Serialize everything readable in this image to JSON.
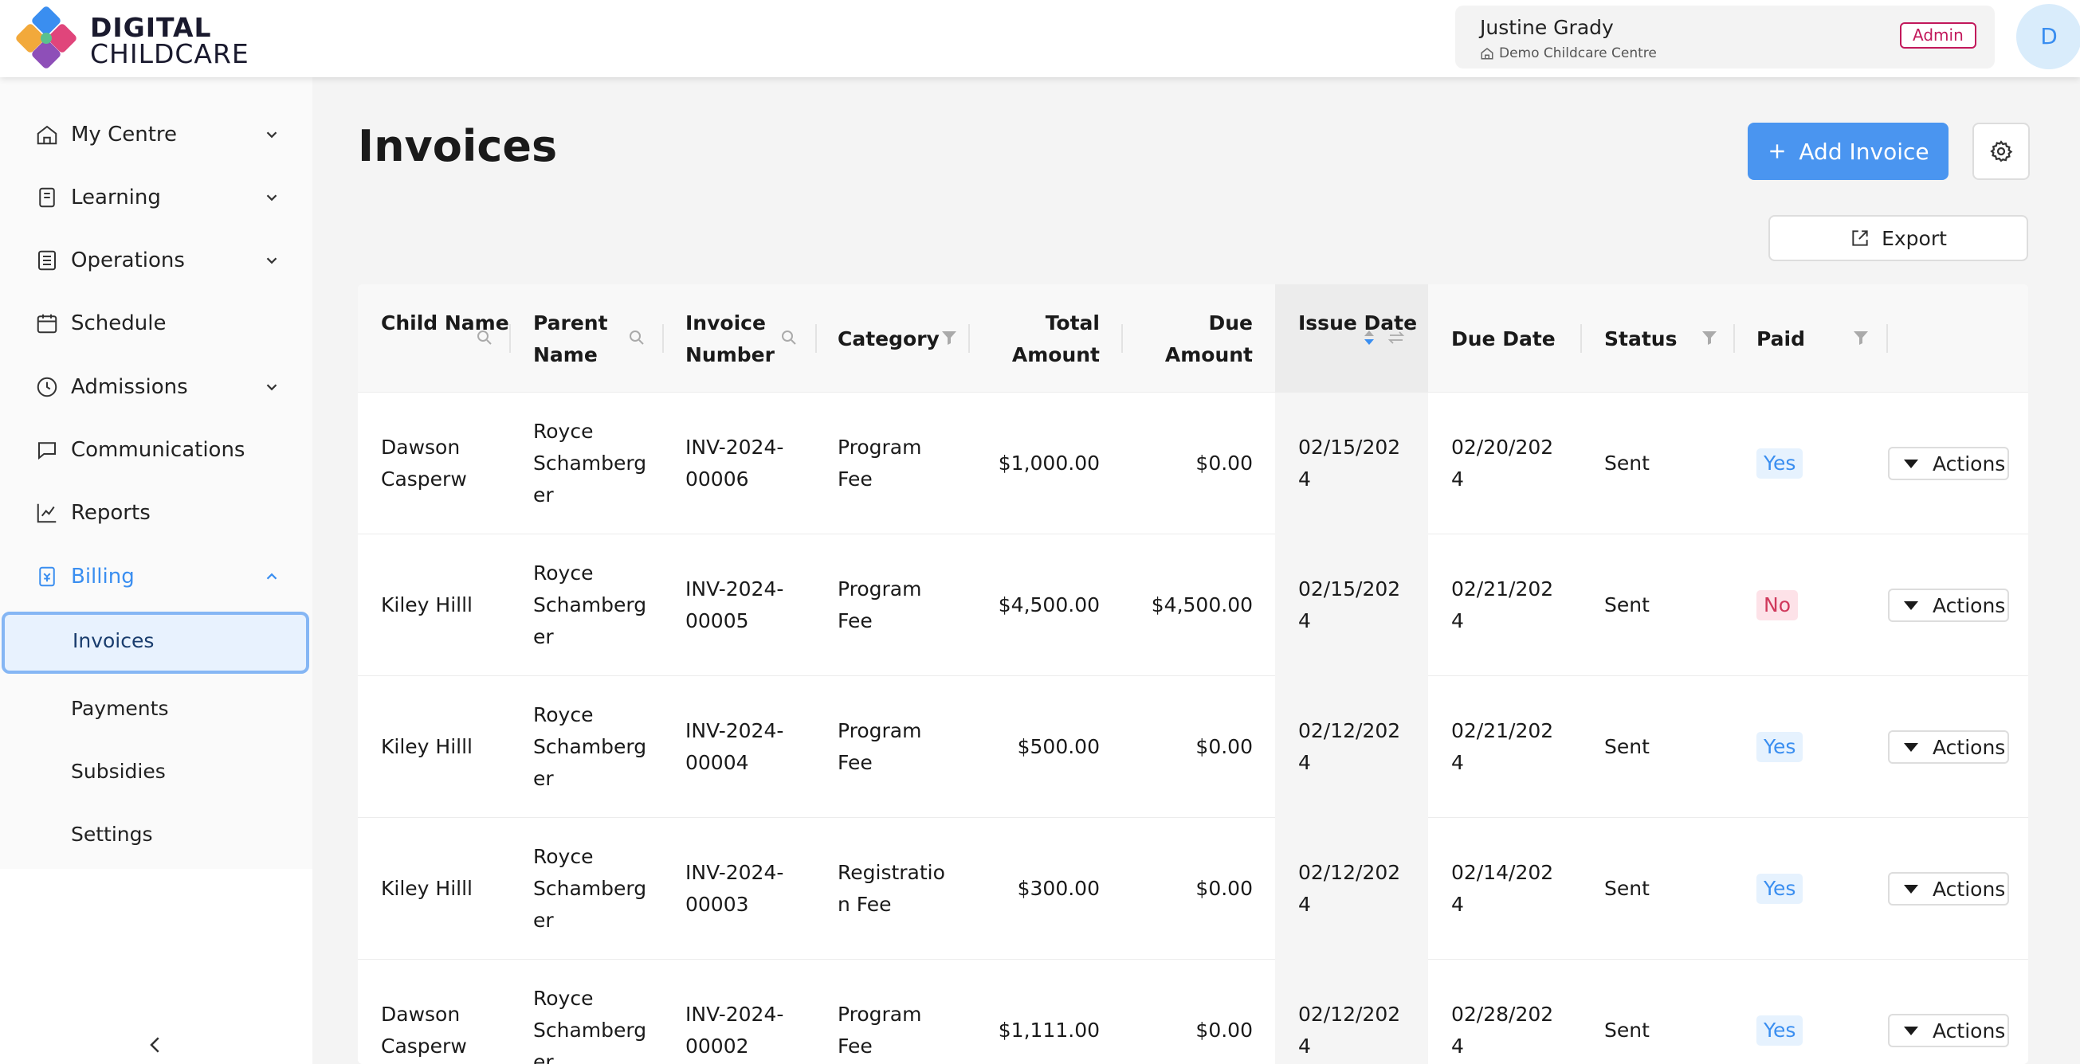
{
  "brand": {
    "line1": "DIGITAL",
    "line2": "CHILDCARE"
  },
  "user": {
    "name": "Justine Grady",
    "centre": "Demo Childcare Centre",
    "role": "Admin",
    "avatar_initial": "D"
  },
  "sidebar": {
    "items": [
      {
        "label": "My Centre",
        "icon": "home-icon",
        "expandable": true
      },
      {
        "label": "Learning",
        "icon": "book-icon",
        "expandable": true
      },
      {
        "label": "Operations",
        "icon": "list-icon",
        "expandable": true
      },
      {
        "label": "Schedule",
        "icon": "calendar-icon",
        "expandable": false
      },
      {
        "label": "Admissions",
        "icon": "clock-icon",
        "expandable": true
      },
      {
        "label": "Communications",
        "icon": "chat-icon",
        "expandable": false
      },
      {
        "label": "Reports",
        "icon": "chart-icon",
        "expandable": false
      },
      {
        "label": "Billing",
        "icon": "billing-icon",
        "expandable": true,
        "active": true
      }
    ],
    "billing_sub": [
      "Invoices",
      "Payments",
      "Subsidies",
      "Settings"
    ],
    "active_sub": "Invoices"
  },
  "page": {
    "title": "Invoices",
    "add_label": "Add Invoice",
    "export_label": "Export"
  },
  "table": {
    "columns": [
      "Child\nName",
      "Parent\nName",
      "Invoice\nNumber",
      "Category",
      "Total\nAmount",
      "Due\nAmount",
      "Issue\nDate",
      "Due Date",
      "Status",
      "Paid"
    ],
    "actions_label": "Actions",
    "rows": [
      {
        "child": "Dawson\nCasperw",
        "parent": "Royce\nSchamberg\ner",
        "invoice": "INV-2024-\n00006",
        "category": "Program\nFee",
        "total": "$1,000.00",
        "due": "$0.00",
        "issue": "02/15/202\n4",
        "due_date": "02/20/202\n4",
        "status": "Sent",
        "paid": "Yes"
      },
      {
        "child": "Kiley Hilll",
        "parent": "Royce\nSchamberg\ner",
        "invoice": "INV-2024-\n00005",
        "category": "Program\nFee",
        "total": "$4,500.00",
        "due": "$4,500.00",
        "issue": "02/15/202\n4",
        "due_date": "02/21/202\n4",
        "status": "Sent",
        "paid": "No"
      },
      {
        "child": "Kiley Hilll",
        "parent": "Royce\nSchamberg\ner",
        "invoice": "INV-2024-\n00004",
        "category": "Program\nFee",
        "total": "$500.00",
        "due": "$0.00",
        "issue": "02/12/202\n4",
        "due_date": "02/21/202\n4",
        "status": "Sent",
        "paid": "Yes"
      },
      {
        "child": "Kiley Hilll",
        "parent": "Royce\nSchamberg\ner",
        "invoice": "INV-2024-\n00003",
        "category": "Registratio\nn Fee",
        "total": "$300.00",
        "due": "$0.00",
        "issue": "02/12/202\n4",
        "due_date": "02/14/202\n4",
        "status": "Sent",
        "paid": "Yes"
      },
      {
        "child": "Dawson\nCasperw",
        "parent": "Royce\nSchamberg\ner",
        "invoice": "INV-2024-\n00002",
        "category": "Program\nFee",
        "total": "$1,111.00",
        "due": "$0.00",
        "issue": "02/12/202\n4",
        "due_date": "02/28/202\n4",
        "status": "Sent",
        "paid": "Yes"
      }
    ]
  },
  "colors": {
    "accent": "#4a95f0",
    "yes_bg": "#e6f2fe",
    "no_bg": "#fde2e8",
    "no_text": "#d0395c",
    "admin": "#c2185b"
  }
}
